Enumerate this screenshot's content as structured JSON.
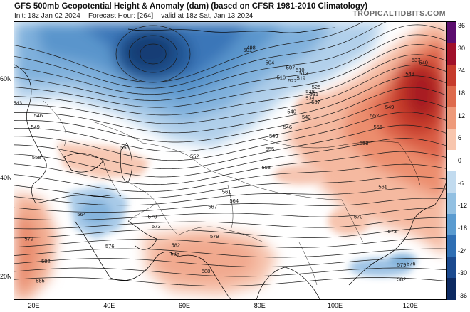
{
  "title": "GFS 500mb Geopotential Height & Anomaly (dam) (based on CFSR 1981-2010 Climatology)",
  "subtitle": {
    "init": "Init: 18z Jan 02 2024",
    "forecast_hour": "Forecast Hour: [264]",
    "valid": "valid at 18z Sat, Jan 13 2024"
  },
  "brand": "TROPICALTIDBITS.COM",
  "latitude_labels": [
    "60N",
    "40N",
    "20N"
  ],
  "longitude_labels": [
    "20E",
    "40E",
    "60E",
    "80E",
    "100E",
    "120E"
  ],
  "colorbar": {
    "labels": [
      "36",
      "30",
      "24",
      "18",
      "12",
      "6",
      "0",
      "-6",
      "-12",
      "-18",
      "-24",
      "-30",
      "-36"
    ],
    "colors": [
      "#5c0d6e",
      "#a0102a",
      "#c63b2c",
      "#de6a4c",
      "#ee9a7a",
      "#f8c6ae",
      "#ffffff",
      "#c2dbef",
      "#92c0e2",
      "#5a9bd0",
      "#2f6fb4",
      "#1b4a8f",
      "#0d2a62"
    ]
  },
  "contour_labels": [
    {
      "text": "498",
      "lon": 77.5,
      "lat": 66.5
    },
    {
      "text": "501",
      "lon": 76.6,
      "lat": 66
    },
    {
      "text": "504",
      "lon": 82.5,
      "lat": 63.5
    },
    {
      "text": "507",
      "lon": 88,
      "lat": 62.5
    },
    {
      "text": "510",
      "lon": 90.5,
      "lat": 62
    },
    {
      "text": "513",
      "lon": 91.5,
      "lat": 61.3
    },
    {
      "text": "516",
      "lon": 85.5,
      "lat": 60.5
    },
    {
      "text": "519",
      "lon": 90.8,
      "lat": 60.3
    },
    {
      "text": "522",
      "lon": 88.5,
      "lat": 59.8
    },
    {
      "text": "525",
      "lon": 94.8,
      "lat": 58.5
    },
    {
      "text": "528",
      "lon": 93.2,
      "lat": 57.7
    },
    {
      "text": "531",
      "lon": 94.2,
      "lat": 57.1
    },
    {
      "text": "534",
      "lon": 93.2,
      "lat": 56.3
    },
    {
      "text": "537",
      "lon": 94.7,
      "lat": 55.5
    },
    {
      "text": "540",
      "lon": 88.3,
      "lat": 53.6
    },
    {
      "text": "543",
      "lon": 92.2,
      "lat": 52.5
    },
    {
      "text": "546",
      "lon": 87.2,
      "lat": 50.5
    },
    {
      "text": "549",
      "lon": 83.5,
      "lat": 48.6
    },
    {
      "text": "552",
      "lon": 62.5,
      "lat": 44.5
    },
    {
      "text": "555",
      "lon": 82.5,
      "lat": 46
    },
    {
      "text": "558",
      "lon": 81.5,
      "lat": 42.3
    },
    {
      "text": "561",
      "lon": 71,
      "lat": 37.3
    },
    {
      "text": "564",
      "lon": 73,
      "lat": 35.5
    },
    {
      "text": "567",
      "lon": 67.3,
      "lat": 34.3
    },
    {
      "text": "570",
      "lon": 51.3,
      "lat": 32.3
    },
    {
      "text": "573",
      "lon": 52.3,
      "lat": 30.3
    },
    {
      "text": "576",
      "lon": 40,
      "lat": 26.3
    },
    {
      "text": "579",
      "lon": 67.8,
      "lat": 28.3
    },
    {
      "text": "582",
      "lon": 57.5,
      "lat": 26.5
    },
    {
      "text": "585",
      "lon": 57.3,
      "lat": 24.8
    },
    {
      "text": "588",
      "lon": 65.5,
      "lat": 21.3
    },
    {
      "text": "543",
      "lon": 15.5,
      "lat": 55.3
    },
    {
      "text": "546",
      "lon": 21,
      "lat": 52.8
    },
    {
      "text": "549",
      "lon": 20.2,
      "lat": 50.5
    },
    {
      "text": "555",
      "lon": 44,
      "lat": 46.3
    },
    {
      "text": "558",
      "lon": 20.5,
      "lat": 44.3
    },
    {
      "text": "564",
      "lon": 32.5,
      "lat": 32.8
    },
    {
      "text": "579",
      "lon": 18.5,
      "lat": 27.8
    },
    {
      "text": "582",
      "lon": 23,
      "lat": 23.3
    },
    {
      "text": "585",
      "lon": 21.5,
      "lat": 19.3
    },
    {
      "text": "537",
      "lon": 121.3,
      "lat": 64
    },
    {
      "text": "540",
      "lon": 123.3,
      "lat": 63.5
    },
    {
      "text": "543",
      "lon": 119.7,
      "lat": 61.2
    },
    {
      "text": "549",
      "lon": 114.3,
      "lat": 54.5
    },
    {
      "text": "552",
      "lon": 110.3,
      "lat": 52.8
    },
    {
      "text": "555",
      "lon": 111.2,
      "lat": 50.5
    },
    {
      "text": "558",
      "lon": 107.5,
      "lat": 47.2
    },
    {
      "text": "561",
      "lon": 112.5,
      "lat": 38.3
    },
    {
      "text": "570",
      "lon": 106,
      "lat": 32.3
    },
    {
      "text": "573",
      "lon": 115,
      "lat": 29.3
    },
    {
      "text": "576",
      "lon": 120,
      "lat": 22.8
    },
    {
      "text": "579",
      "lon": 117.5,
      "lat": 22.6
    },
    {
      "text": "582",
      "lon": 117.5,
      "lat": 19.6
    }
  ]
}
